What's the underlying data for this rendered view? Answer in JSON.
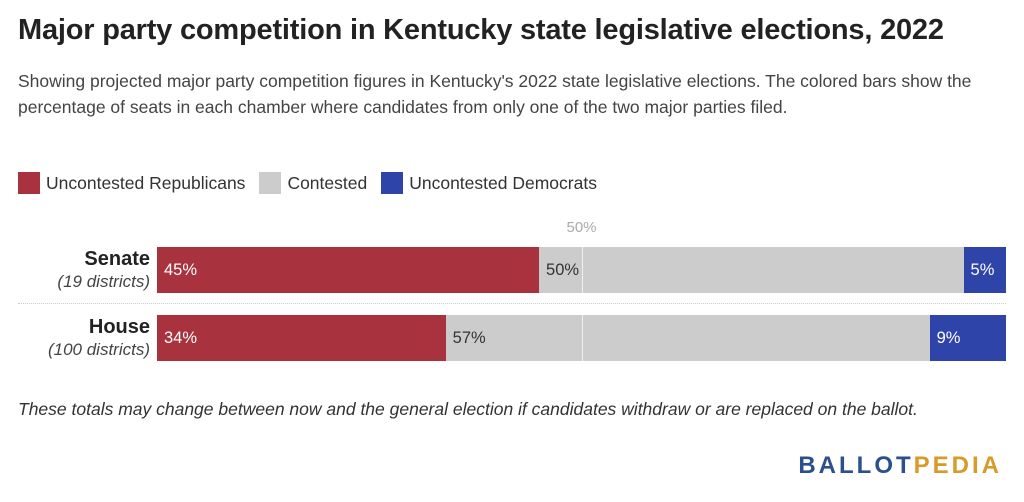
{
  "title": "Major party competition in Kentucky state legislative elections, 2022",
  "subtitle": "Showing projected major party competition figures in Kentucky's 2022 state legislative elections. The colored bars show the percentage of seats in each chamber where candidates from only one of the two major parties filed.",
  "note": "These totals may change between now and the general election if candidates withdraw or are replaced on the ballot.",
  "logo": {
    "part1": "BALLOT",
    "part2": "PEDIA"
  },
  "colors": {
    "republicans": "#a8323e",
    "contested": "#cccccc",
    "democrats": "#2f44a8"
  },
  "chart_data": {
    "type": "bar",
    "orientation": "horizontal-stacked",
    "categories": [
      "Senate",
      "House"
    ],
    "category_subtitles": [
      "(19 districts)",
      "(100 districts)"
    ],
    "series": [
      {
        "name": "Uncontested Republicans",
        "values": [
          45,
          34
        ],
        "labels": [
          "45%",
          "34%"
        ]
      },
      {
        "name": "Contested",
        "values": [
          50,
          57
        ],
        "labels": [
          "50%",
          "57%"
        ]
      },
      {
        "name": "Uncontested Democrats",
        "values": [
          5,
          9
        ],
        "labels": [
          "5%",
          "9%"
        ]
      }
    ],
    "xlim": [
      0,
      100
    ],
    "reference_line": {
      "value": 50,
      "label": "50%"
    },
    "legend_position": "top-left"
  }
}
